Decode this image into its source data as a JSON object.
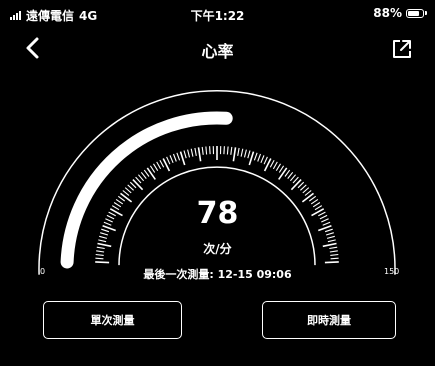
{
  "status_bar": {
    "carrier": "遠傳電信",
    "network": "4G",
    "time": "下午1:22",
    "battery": "88%",
    "battery_level": 0.88
  },
  "nav": {
    "title": "心率",
    "back_icon": "chevron-left-icon",
    "share_icon": "share-external-icon"
  },
  "gauge": {
    "value": "78",
    "unit": "次/分",
    "min": "0",
    "max": "150",
    "last_measurement": "最後一次測量: 12-15 09:06",
    "fill_color": "#ffffff"
  },
  "buttons": {
    "single": "單次測量",
    "realtime": "即時測量"
  }
}
